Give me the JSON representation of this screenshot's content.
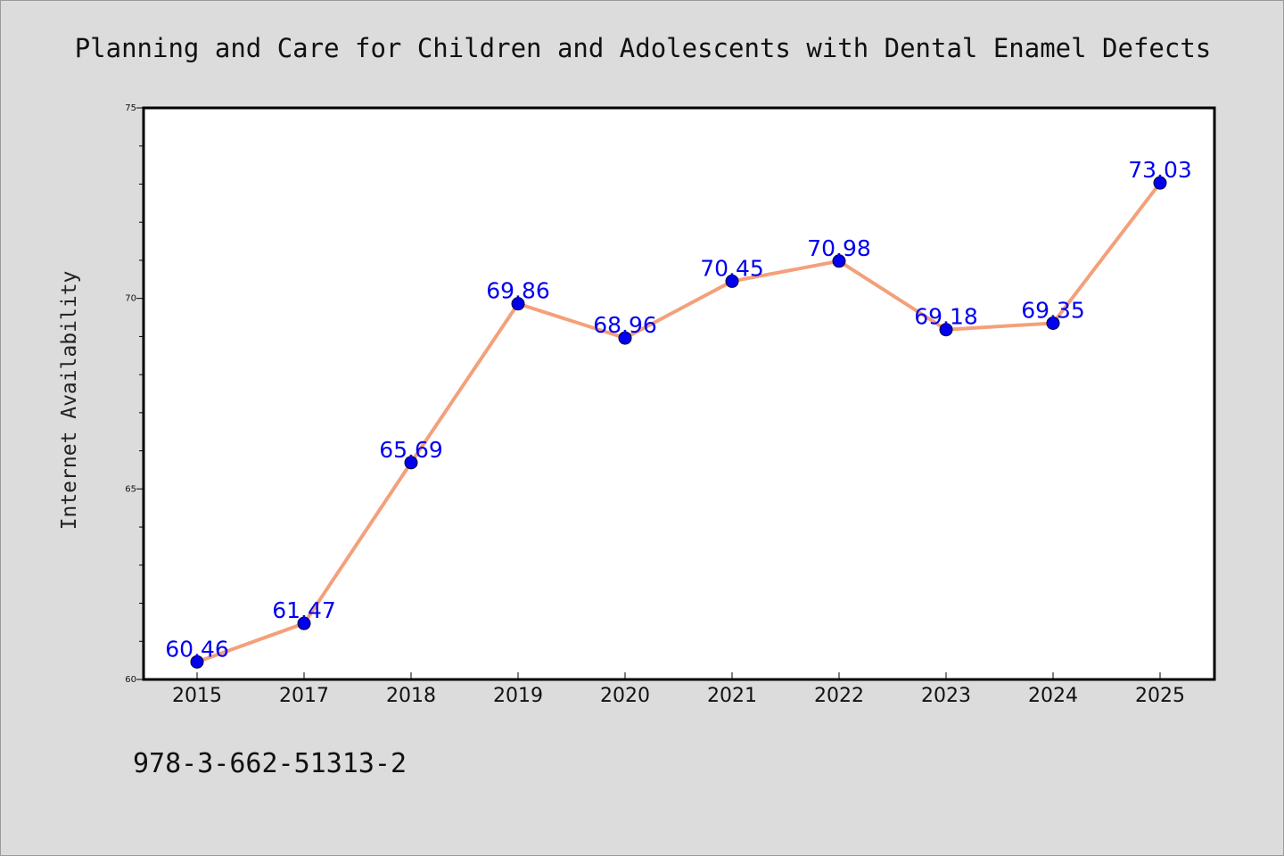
{
  "chart_data": {
    "type": "line",
    "title": "Planning and Care for Children and Adolescents with Dental Enamel Defects",
    "xlabel": "",
    "ylabel": "Internet Availability",
    "categories": [
      "2015",
      "2017",
      "2018",
      "2019",
      "2020",
      "2021",
      "2022",
      "2023",
      "2024",
      "2025"
    ],
    "series": [
      {
        "values": [
          60.46,
          61.47,
          65.69,
          69.86,
          68.96,
          70.45,
          70.98,
          69.18,
          69.35,
          73.03
        ]
      }
    ],
    "data_labels": [
      "60.46",
      "61.47",
      "65.69",
      "69.86",
      "68.96",
      "70.45",
      "70.98",
      "69.18",
      "69.35",
      "73.03"
    ],
    "ylim": [
      60,
      75
    ],
    "yticks": [
      "60",
      "65",
      "70",
      "75"
    ],
    "grid": false,
    "legend": "none",
    "colors": {
      "line": "#f4a07a",
      "marker": "#0000ee",
      "label": "#0000ee",
      "background": "#dcdcdc",
      "plot_area": "#ffffff"
    }
  },
  "footer": {
    "isbn": "978-3-662-51313-2"
  }
}
